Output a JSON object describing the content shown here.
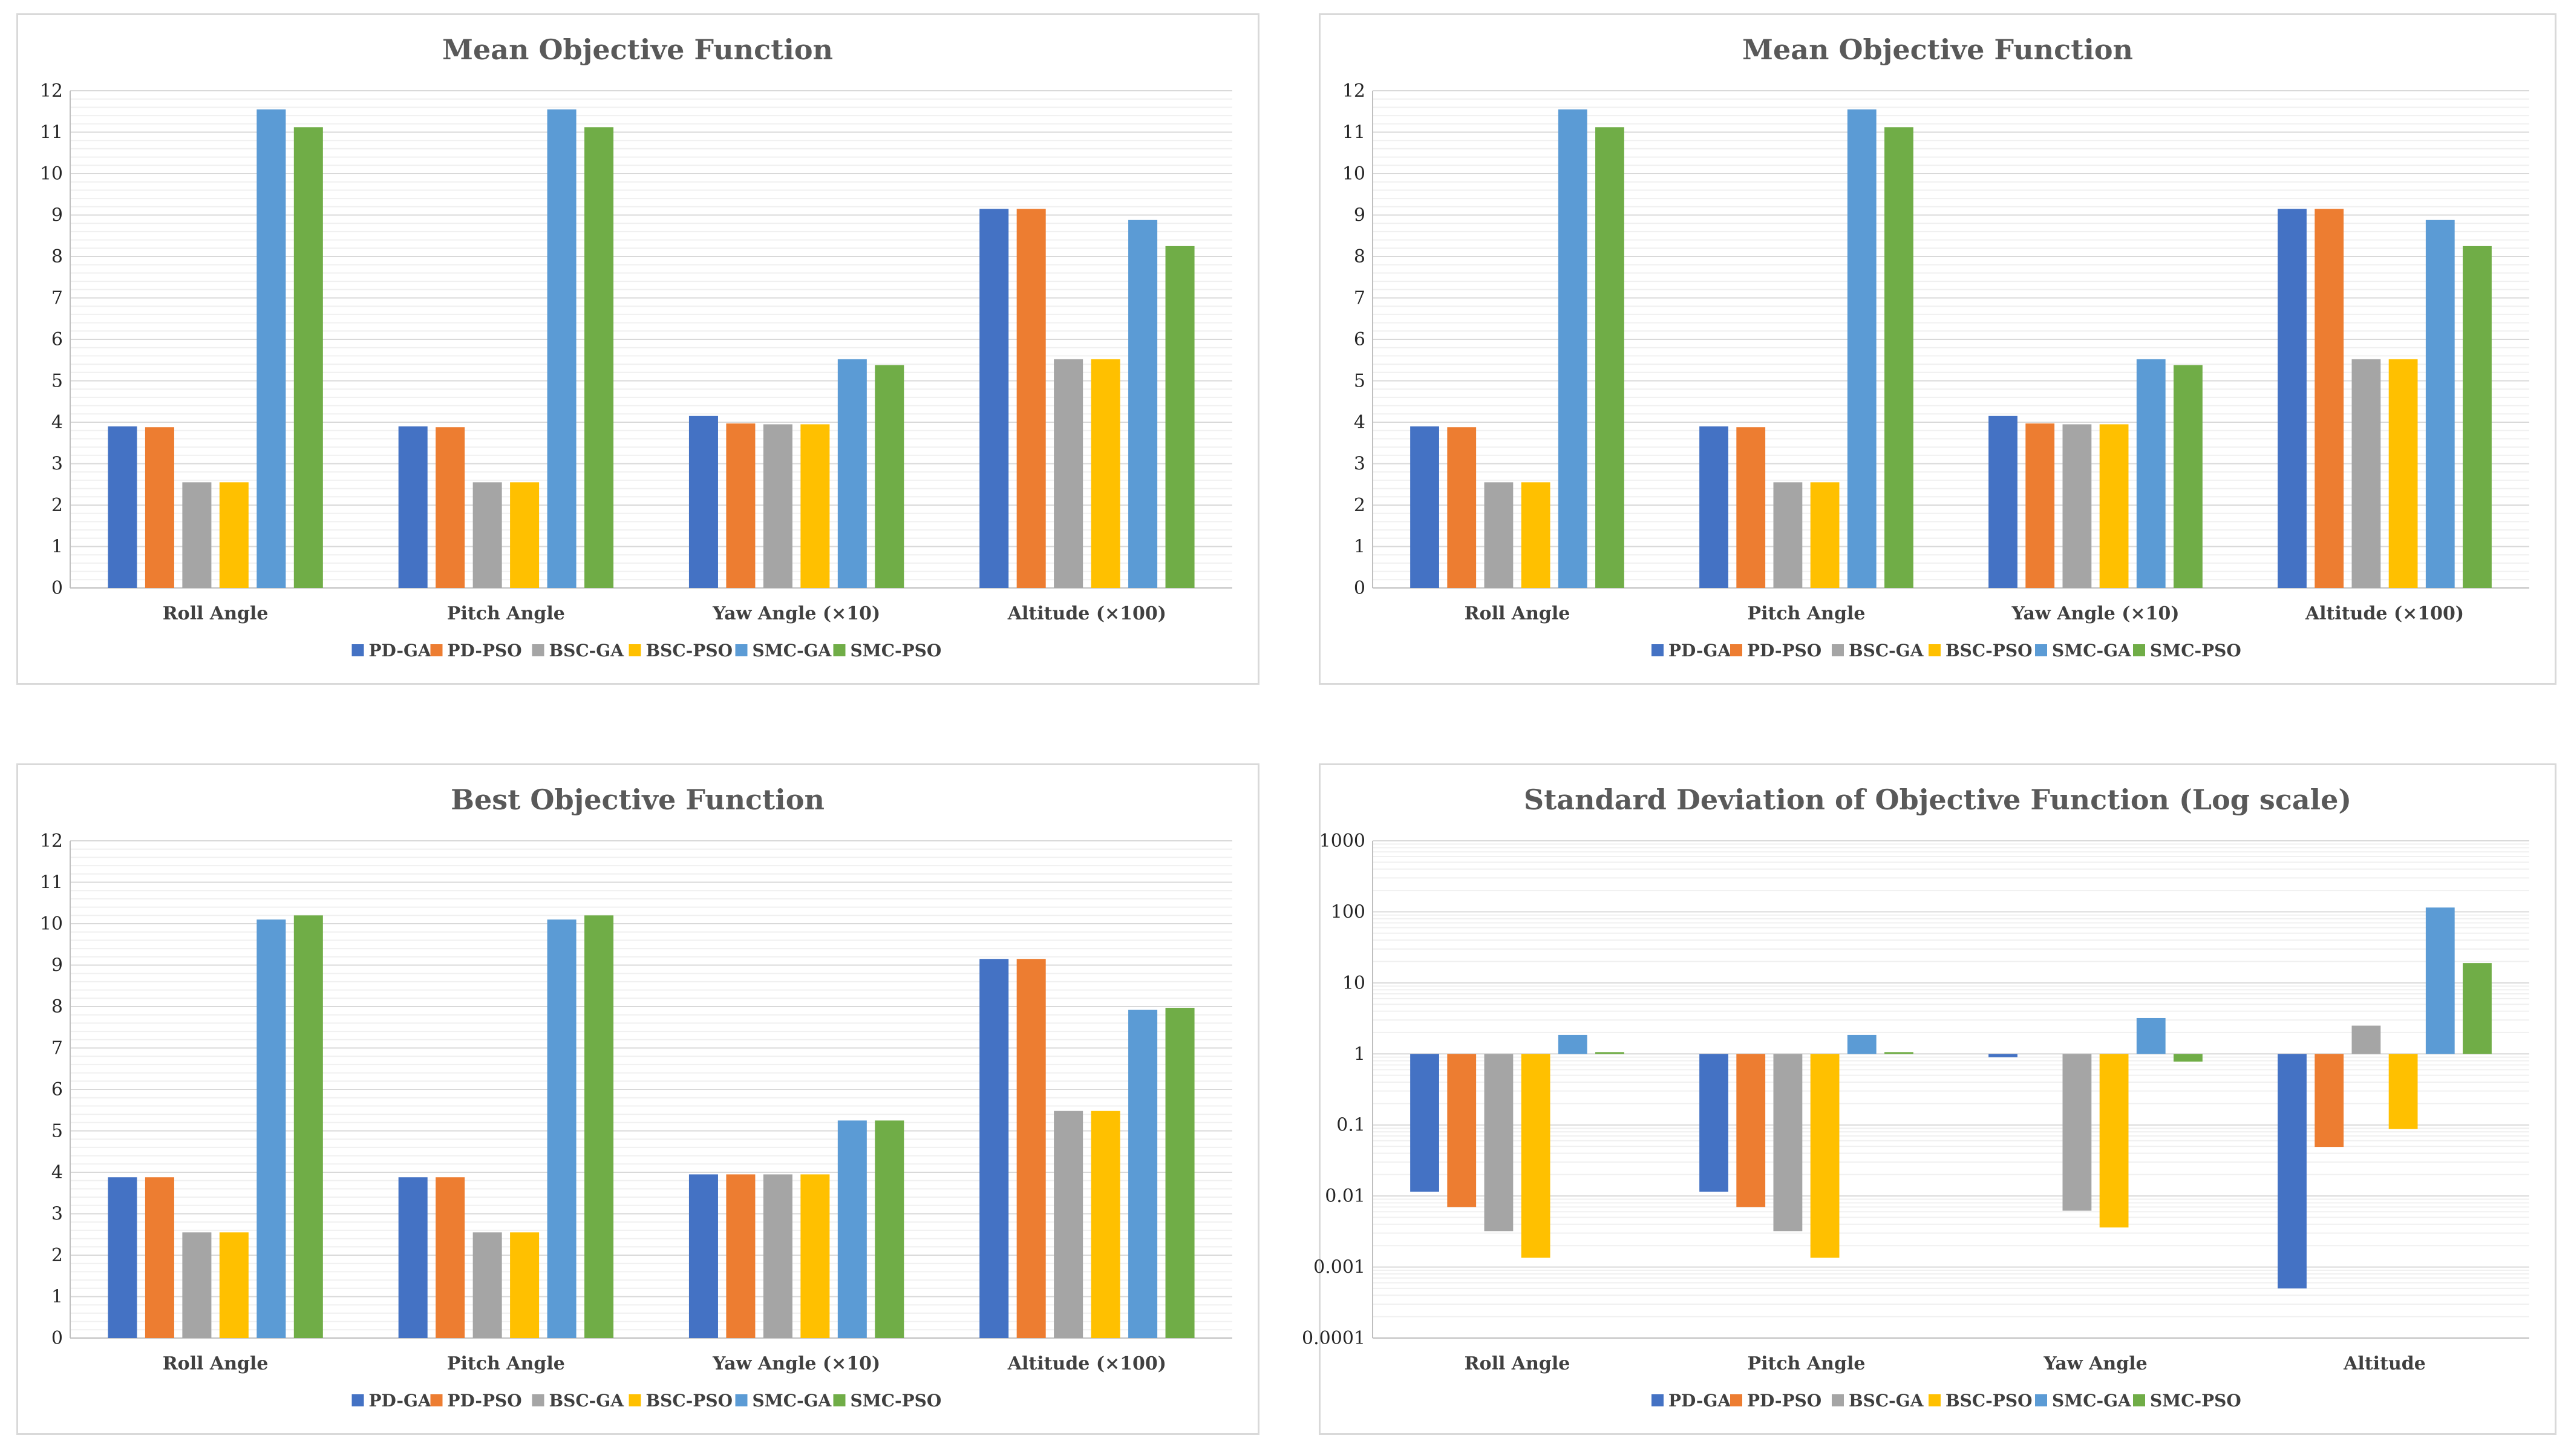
{
  "colors": {
    "PD-GA": "#4472c4",
    "PD-PSO": "#ed7d31",
    "BSC-GA": "#a5a5a5",
    "BSC-PSO": "#ffc000",
    "SMC-GA": "#5b9bd5",
    "SMC-PSO": "#70ad47"
  },
  "chart_data": [
    {
      "type": "bar",
      "title": "Mean Objective Function",
      "categories": [
        "Roll Angle",
        "Pitch Angle",
        "Yaw Angle (×10)",
        "Altitude (×100)"
      ],
      "ylim": [
        0,
        12
      ],
      "yticks": [
        "0",
        "1",
        "2",
        "3",
        "4",
        "5",
        "6",
        "7",
        "8",
        "9",
        "10",
        "11",
        "12"
      ],
      "series": [
        {
          "name": "PD-GA",
          "values": [
            3.9,
            3.9,
            4.15,
            9.15
          ]
        },
        {
          "name": "PD-PSO",
          "values": [
            3.88,
            3.88,
            3.97,
            9.15
          ]
        },
        {
          "name": "BSC-GA",
          "values": [
            2.55,
            2.55,
            3.95,
            5.52
          ]
        },
        {
          "name": "BSC-PSO",
          "values": [
            2.55,
            2.55,
            3.95,
            5.52
          ]
        },
        {
          "name": "SMC-GA",
          "values": [
            11.55,
            11.55,
            5.52,
            8.88
          ]
        },
        {
          "name": "SMC-PSO",
          "values": [
            11.12,
            11.12,
            5.38,
            8.25
          ]
        }
      ]
    },
    {
      "type": "bar",
      "title": "Mean Objective Function",
      "categories": [
        "Roll Angle",
        "Pitch Angle",
        "Yaw Angle (×10)",
        "Altitude (×100)"
      ],
      "ylim": [
        0,
        12
      ],
      "yticks": [
        "0",
        "1",
        "2",
        "3",
        "4",
        "5",
        "6",
        "7",
        "8",
        "9",
        "10",
        "11",
        "12"
      ],
      "series": [
        {
          "name": "PD-GA",
          "values": [
            3.9,
            3.9,
            4.15,
            9.15
          ]
        },
        {
          "name": "PD-PSO",
          "values": [
            3.88,
            3.88,
            3.97,
            9.15
          ]
        },
        {
          "name": "BSC-GA",
          "values": [
            2.55,
            2.55,
            3.95,
            5.52
          ]
        },
        {
          "name": "BSC-PSO",
          "values": [
            2.55,
            2.55,
            3.95,
            5.52
          ]
        },
        {
          "name": "SMC-GA",
          "values": [
            11.55,
            11.55,
            5.52,
            8.88
          ]
        },
        {
          "name": "SMC-PSO",
          "values": [
            11.12,
            11.12,
            5.38,
            8.25
          ]
        }
      ]
    },
    {
      "type": "bar",
      "title": "Best Objective Function",
      "categories": [
        "Roll Angle",
        "Pitch Angle",
        "Yaw Angle (×10)",
        "Altitude (×100)"
      ],
      "ylim": [
        0,
        12
      ],
      "yticks": [
        "0",
        "1",
        "2",
        "3",
        "4",
        "5",
        "6",
        "7",
        "8",
        "9",
        "10",
        "11",
        "12"
      ],
      "series": [
        {
          "name": "PD-GA",
          "values": [
            3.88,
            3.88,
            3.95,
            9.15
          ]
        },
        {
          "name": "PD-PSO",
          "values": [
            3.88,
            3.88,
            3.95,
            9.15
          ]
        },
        {
          "name": "BSC-GA",
          "values": [
            2.55,
            2.55,
            3.95,
            5.48
          ]
        },
        {
          "name": "BSC-PSO",
          "values": [
            2.55,
            2.55,
            3.95,
            5.48
          ]
        },
        {
          "name": "SMC-GA",
          "values": [
            10.1,
            10.1,
            5.25,
            7.92
          ]
        },
        {
          "name": "SMC-PSO",
          "values": [
            10.2,
            10.2,
            5.25,
            7.97
          ]
        }
      ]
    },
    {
      "type": "bar",
      "log": true,
      "title": "Standard Deviation of Objective Function (Log scale)",
      "categories": [
        "Roll Angle",
        "Pitch Angle",
        "Yaw Angle",
        "Altitude"
      ],
      "ylim": [
        0.0001,
        1000
      ],
      "yticks": [
        "0.0001",
        "0.001",
        "0.01",
        "0.1",
        "1",
        "10",
        "100",
        "1000"
      ],
      "series": [
        {
          "name": "PD-GA",
          "values": [
            0.0115,
            0.0115,
            0.9,
            0.0005
          ]
        },
        {
          "name": "PD-PSO",
          "values": [
            0.007,
            0.007,
            null,
            0.049
          ]
        },
        {
          "name": "BSC-GA",
          "values": [
            0.0032,
            0.0032,
            0.0062,
            2.5
          ]
        },
        {
          "name": "BSC-PSO",
          "values": [
            0.00135,
            0.00135,
            0.0036,
            0.088
          ]
        },
        {
          "name": "SMC-GA",
          "values": [
            1.85,
            1.85,
            3.2,
            115
          ]
        },
        {
          "name": "SMC-PSO",
          "values": [
            1.06,
            1.06,
            0.78,
            19
          ]
        }
      ]
    }
  ]
}
